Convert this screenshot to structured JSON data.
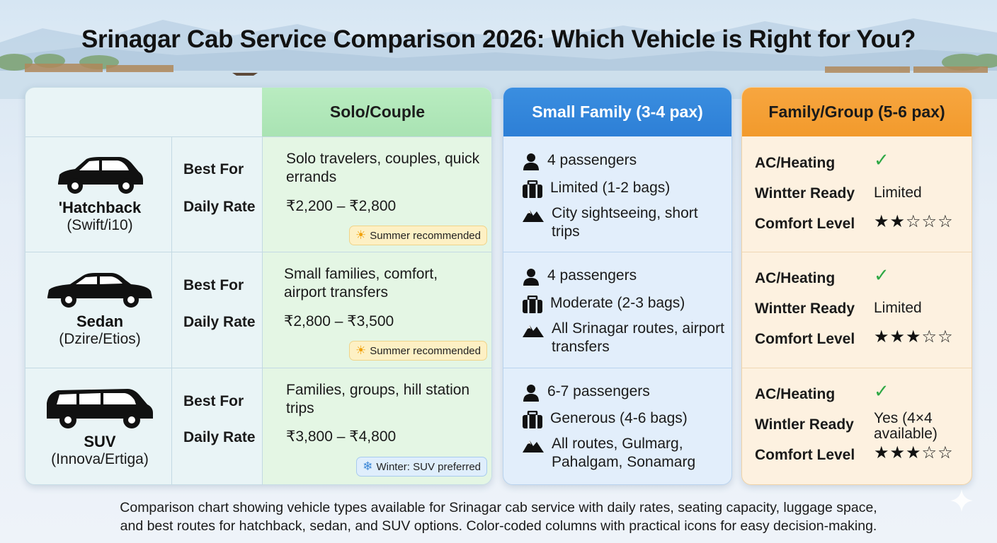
{
  "title": "Srinagar Cab Service Comparison 2026: Which Vehicle is Right for You?",
  "columns": {
    "solo": "Solo/Couple",
    "small_family": "Small Family (3-4 pax)",
    "group": "Family/Group (5-6 pax)"
  },
  "labels": {
    "best_for": "Best For",
    "daily_rate": "Daily Rate",
    "ac": "AC/Heating",
    "winter": "Wintter Ready",
    "winter_suv": "Wintler Ready",
    "comfort": "Comfort Level"
  },
  "vehicles": [
    {
      "name": "'Hatchback",
      "models": "(Swift/i10)",
      "best_for": "Solo travelers, couples, quick errands",
      "rate": "₹2,200 – ₹2,800",
      "badge": "Summer recommended",
      "badge_icon": "sun-icon",
      "passengers": "4 passengers",
      "luggage": "Limited (1-2 bags)",
      "routes": "City sightseeing, short trips",
      "ac": "✓",
      "winter": "Limited",
      "comfort_rating": 2,
      "comfort_stars": "★★☆☆☆"
    },
    {
      "name": "Sedan",
      "models": "(Dzire/Etios)",
      "best_for": "Small families, comfort, airport transfers",
      "rate": "₹2,800 – ₹3,500",
      "badge": "Summer recommended",
      "badge_icon": "sun-icon",
      "passengers": "4 passengers",
      "luggage": "Moderate (2-3 bags)",
      "routes": "All Srinagar routes, airport transfers",
      "ac": "✓",
      "winter": "Limited",
      "comfort_rating": 3,
      "comfort_stars": "★★★☆☆"
    },
    {
      "name": "SUV",
      "models": "(Innova/Ertiga)",
      "best_for": "Families, groups, hill station trips",
      "rate": "₹3,800 – ₹4,800",
      "badge": "Winter: SUV preferred",
      "badge_icon": "snowflake-icon",
      "passengers": "6-7 passengers",
      "luggage": "Generous (4-6 bags)",
      "routes": "All routes, Gulmarg, Pahalgam, Sonamarg",
      "ac": "✓",
      "winter": "Yes (4×4 available)",
      "comfort_rating": 3,
      "comfort_stars": "★★★☆☆"
    }
  ],
  "caption_line1": "Comparison chart showing vehicle types available for Srinagar cab service with daily rates, seating capacity, luggage space,",
  "caption_line2": "and best routes for hatchback, sedan, and SUV options. Color-coded columns with practical icons for easy decision-making.",
  "colors": {
    "green_header": "#a9e3b3",
    "blue_header": "#2d7fd6",
    "orange_header": "#f29a2c",
    "check": "#2ea845"
  }
}
